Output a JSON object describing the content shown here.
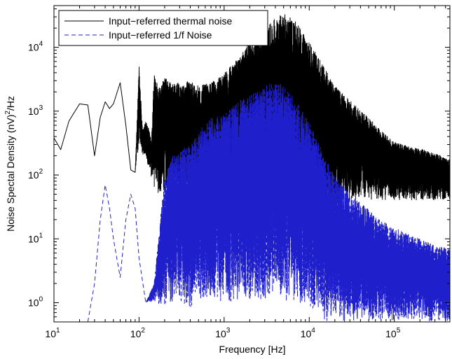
{
  "chart_data": {
    "type": "line",
    "x_scale": "log",
    "y_scale": "log",
    "xlim": [
      10,
      450000
    ],
    "ylim": [
      0.5,
      45000
    ],
    "xlabel": "Frequency [Hz]",
    "ylabel_main": "Noise Spectal Density (nV)",
    "ylabel_exp": "2",
    "ylabel_tail": "/Hz",
    "x_ticks": [
      {
        "value": 10,
        "base": "10",
        "exp": "1"
      },
      {
        "value": 100,
        "base": "10",
        "exp": "2"
      },
      {
        "value": 1000,
        "base": "10",
        "exp": "3"
      },
      {
        "value": 10000,
        "base": "10",
        "exp": "4"
      },
      {
        "value": 100000,
        "base": "10",
        "exp": "5"
      }
    ],
    "y_ticks": [
      {
        "value": 1,
        "base": "10",
        "exp": "0"
      },
      {
        "value": 10,
        "base": "10",
        "exp": "1"
      },
      {
        "value": 100,
        "base": "10",
        "exp": "2"
      },
      {
        "value": 1000,
        "base": "10",
        "exp": "3"
      },
      {
        "value": 10000,
        "base": "10",
        "exp": "4"
      }
    ],
    "grid": false,
    "legend_position": "top-left",
    "series": [
      {
        "name": "Input−referred thermal noise",
        "color": "#000000",
        "style": "solid",
        "envelope": {
          "x": [
            10,
            12,
            15,
            20,
            25,
            30,
            35,
            40,
            45,
            50,
            60,
            70,
            80,
            90,
            100,
            110,
            120,
            130,
            140,
            150,
            170,
            200,
            250,
            300,
            400,
            500,
            700,
            1000,
            1500,
            2000,
            3000,
            4000,
            5000,
            7000,
            10000,
            15000,
            20000,
            30000,
            50000,
            70000,
            100000,
            150000,
            200000,
            300000,
            450000
          ],
          "upper": [
            380,
            250,
            700,
            1300,
            1250,
            200,
            800,
            1400,
            1100,
            1300,
            2800,
            600,
            120,
            110,
            5200,
            500,
            700,
            550,
            350,
            3800,
            2500,
            3500,
            2800,
            2800,
            3000,
            2500,
            2800,
            4000,
            7000,
            12000,
            18000,
            30000,
            35000,
            25000,
            12000,
            5000,
            2500,
            1500,
            800,
            500,
            330,
            280,
            260,
            220,
            180
          ],
          "lower": [
            380,
            250,
            700,
            1300,
            1250,
            200,
            800,
            1400,
            1100,
            1300,
            2800,
            600,
            120,
            110,
            300,
            200,
            200,
            120,
            90,
            60,
            50,
            50,
            40,
            50,
            40,
            40,
            40,
            50,
            60,
            60,
            50,
            40,
            40,
            40,
            40,
            30,
            30,
            40,
            40,
            40,
            40,
            40,
            40,
            40,
            40
          ]
        }
      },
      {
        "name": "Input−referred 1/f Noise",
        "color": "#1f1fcc",
        "style": "dashed",
        "envelope": {
          "x": [
            25,
            30,
            35,
            40,
            45,
            50,
            60,
            70,
            80,
            90,
            100,
            120,
            150,
            200,
            250,
            300,
            400,
            500,
            700,
            1000,
            1500,
            2000,
            3000,
            4000,
            5000,
            7000,
            10000,
            15000,
            20000,
            30000,
            50000,
            70000,
            100000,
            150000,
            200000,
            300000,
            450000
          ],
          "upper": [
            0.5,
            2,
            20,
            70,
            30,
            10,
            2.5,
            20,
            50,
            30,
            5,
            1,
            2,
            100,
            200,
            250,
            300,
            500,
            800,
            900,
            1500,
            1800,
            2500,
            3000,
            2500,
            1500,
            700,
            200,
            100,
            50,
            30,
            20,
            15,
            12,
            10,
            8,
            7
          ],
          "lower": [
            0.5,
            2,
            20,
            70,
            30,
            10,
            2.5,
            20,
            50,
            30,
            5,
            1,
            1,
            0.9,
            1,
            1,
            0.8,
            1,
            1,
            1,
            1,
            1,
            1,
            1,
            1,
            1,
            0.7,
            0.5,
            0.5,
            0.5,
            0.5,
            0.5,
            0.5,
            0.5,
            0.5,
            0.5,
            0.5
          ]
        }
      }
    ]
  }
}
